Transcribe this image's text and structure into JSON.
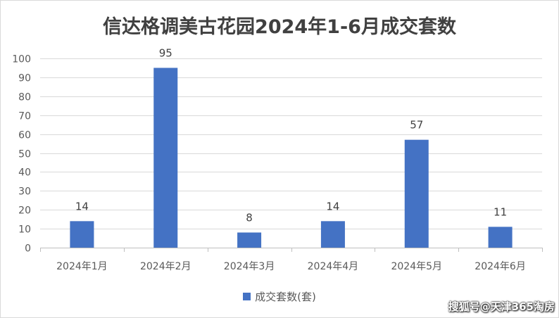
{
  "chart_data": {
    "type": "bar",
    "title": "信达格调美古花园2024年1-6月成交套数",
    "categories": [
      "2024年1月",
      "2024年2月",
      "2024年3月",
      "2024年4月",
      "2024年5月",
      "2024年6月"
    ],
    "series": [
      {
        "name": "成交套数(套)",
        "values": [
          14,
          95,
          8,
          14,
          57,
          11
        ]
      }
    ],
    "ylim": [
      0,
      100
    ],
    "yticks": [
      0,
      10,
      20,
      30,
      40,
      50,
      60,
      70,
      80,
      90,
      100
    ],
    "data_labels": true,
    "grid": true,
    "legend_position": "bottom",
    "bar_color": "#4472c4"
  },
  "watermark": "搜狐号@天津365淘房"
}
